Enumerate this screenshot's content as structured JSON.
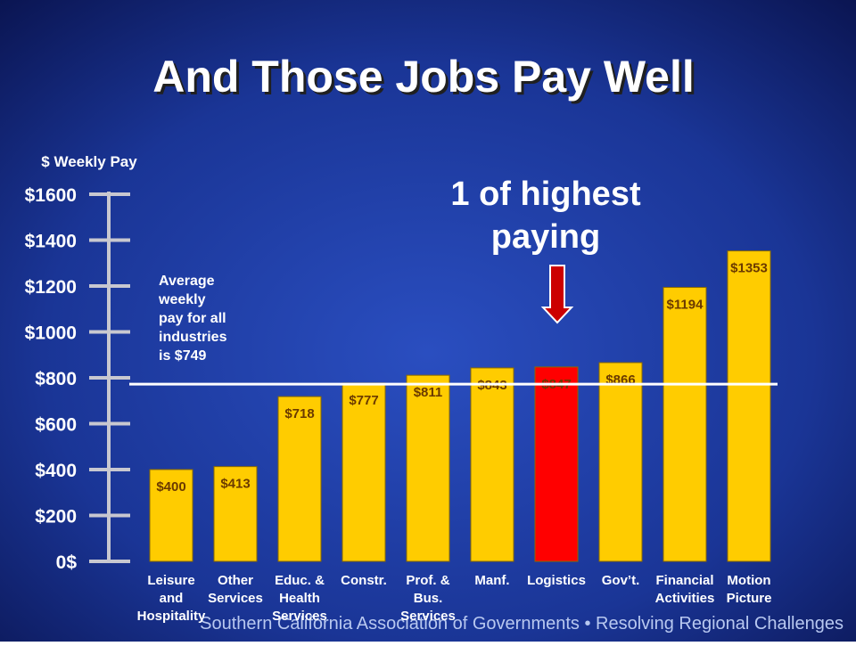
{
  "chart_data": {
    "type": "bar",
    "title": "And Those Jobs Pay Well",
    "y_axis_label": "$ Weekly Pay",
    "categories": [
      "Leisure\nand\nHospitality",
      "Other\nServices",
      "Educ. &\nHealth\nServices",
      "Constr.",
      "Prof. &\nBus.\nServices",
      "Manf.",
      "Logistics",
      "Gov’t.",
      "Financial\nActivities",
      "Motion\nPicture"
    ],
    "values": [
      400,
      413,
      718,
      777,
      811,
      843,
      847,
      866,
      1194,
      1353
    ],
    "value_labels": [
      "$400",
      "$413",
      "$718",
      "$777",
      "$811",
      "$843",
      "$847",
      "$866",
      "$1194",
      "$1353"
    ],
    "colors": [
      "#ffcc00",
      "#ffcc00",
      "#ffcc00",
      "#ffcc00",
      "#ffcc00",
      "#ffcc00",
      "#ff0000",
      "#ffcc00",
      "#ffcc00",
      "#ffcc00"
    ],
    "ylim": [
      0,
      1600
    ],
    "yticks": [
      {
        "value": 0,
        "label": "0$"
      },
      {
        "value": 200,
        "label": "$200"
      },
      {
        "value": 400,
        "label": "$400"
      },
      {
        "value": 600,
        "label": "$600"
      },
      {
        "value": 800,
        "label": "$800"
      },
      {
        "value": 1000,
        "label": "$1000"
      },
      {
        "value": 1200,
        "label": "$1200"
      },
      {
        "value": 1400,
        "label": "$1400"
      },
      {
        "value": 1600,
        "label": "$1600"
      }
    ],
    "average_line": 749,
    "average_annotation": "Average\nweekly\npay for all\nindustries\nis $749",
    "callout": "1 of highest\npaying",
    "footer": "Southern California Association of Governments • Resolving Regional Challenges"
  }
}
